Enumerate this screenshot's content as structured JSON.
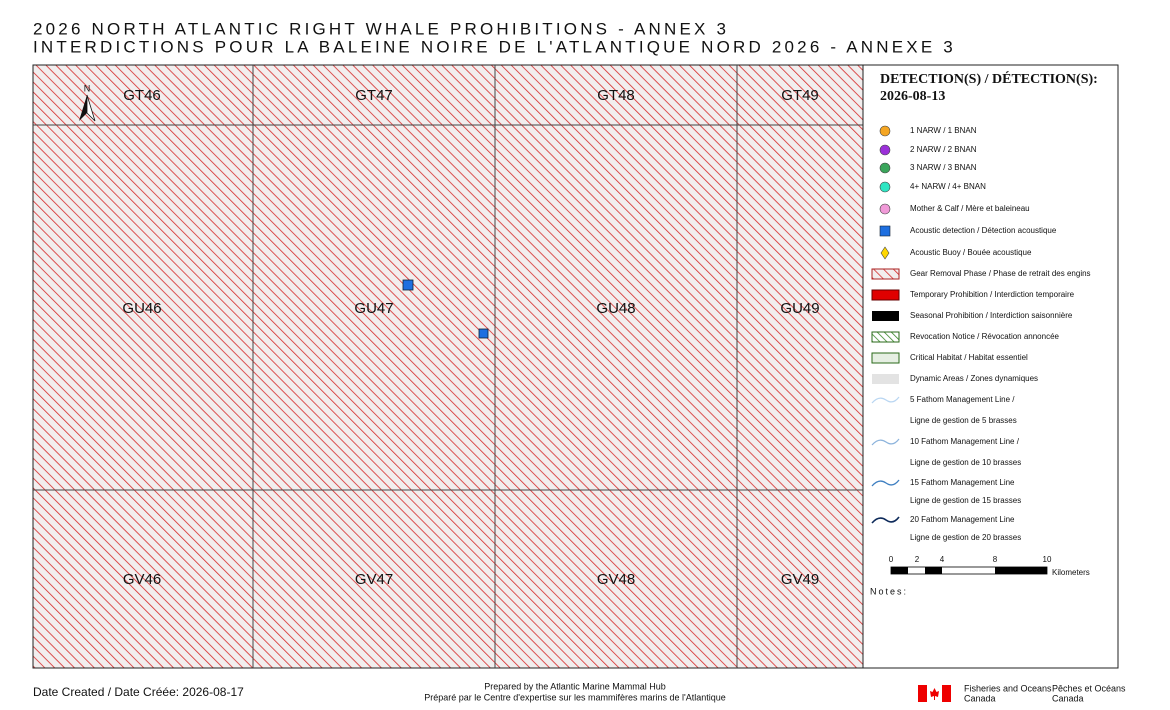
{
  "header": {
    "title_en": "2026 NORTH ATLANTIC RIGHT WHALE PROHIBITIONS - ANNEX 3",
    "title_fr": "INTERDICTIONS POUR LA BALEINE NOIRE DE L'ATLANTIQUE NORD 2026 - ANNEXE 3"
  },
  "map": {
    "north": "N",
    "cells": [
      "GT46",
      "GT47",
      "GT48",
      "GT49",
      "GU46",
      "GU47",
      "GU48",
      "GU49",
      "GV46",
      "GV47",
      "GV48",
      "GV49"
    ]
  },
  "legend": {
    "title": "DETECTION(S) / DÉTECTION(S):",
    "date": "2026-08-13",
    "items": [
      "1 NARW / 1 BNAN",
      "2 NARW / 2 BNAN",
      "3 NARW / 3 BNAN",
      "4+ NARW / 4+ BNAN",
      "Mother & Calf / Mère et baleineau",
      "Acoustic detection / Détection acoustique",
      "Acoustic Buoy / Bouée acoustique",
      "Gear Removal Phase / Phase de retrait des engins",
      "Temporary Prohibition / Interdiction temporaire",
      "Seasonal Prohibition / Interdiction saisonnière",
      "Revocation Notice / Révocation annoncée",
      "Critical Habitat / Habitat essentiel",
      "Dynamic Areas / Zones dynamiques",
      "5 Fathom Management Line /",
      "Ligne de gestion de 5 brasses",
      "10 Fathom Management Line /",
      "Ligne de gestion de 10 brasses",
      "15 Fathom Management Line",
      "Ligne de gestion de 15 brasses",
      "20 Fathom Management Line",
      "Ligne de gestion de 20 brasses"
    ],
    "scale_labels": [
      "0",
      "2",
      "4",
      "8",
      "10"
    ],
    "scale_unit": "Kilometers",
    "notes": "Notes:"
  },
  "footer": {
    "date_created": "Date Created / Date Créée: 2026-08-17",
    "prepared_en": "Prepared by the Atlantic Marine Mammal Hub",
    "prepared_fr": "Préparé par le Centre d'expertise sur les mammifères marins de l'Atlantique",
    "dept_en": [
      "Fisheries and Oceans",
      "Canada"
    ],
    "dept_fr": [
      "Pêches et Océans",
      "Canada"
    ]
  }
}
